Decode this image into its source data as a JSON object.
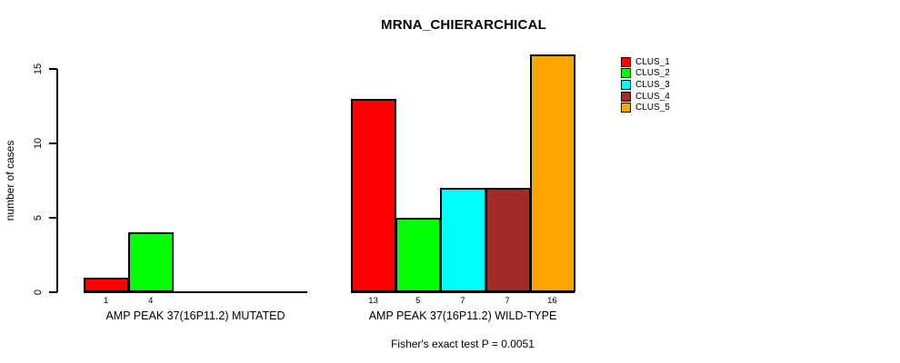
{
  "title": "MRNA_CHIERARCHICAL",
  "footer": "Fisher's exact test P = 0.0051",
  "chart_data": {
    "type": "bar",
    "title": "MRNA_CHIERARCHICAL",
    "xlabel": "",
    "ylabel": "number of cases",
    "ylim": [
      0,
      15
    ],
    "yticks": [
      0,
      5,
      10,
      15
    ],
    "grid": false,
    "legend_position": "top-right",
    "legend": [
      {
        "label": "CLUS_1",
        "color": "#ff0000"
      },
      {
        "label": "CLUS_2",
        "color": "#00ff00"
      },
      {
        "label": "CLUS_3",
        "color": "#00ffff"
      },
      {
        "label": "CLUS_4",
        "color": "#a52a2a"
      },
      {
        "label": "CLUS_5",
        "color": "#ffa500"
      }
    ],
    "groups": [
      {
        "axis_label": "AMP PEAK 37(16P11.2) MUTATED",
        "bars": [
          {
            "cluster": "CLUS_1",
            "value": 1
          },
          {
            "cluster": "CLUS_2",
            "value": 4
          }
        ]
      },
      {
        "axis_label": "AMP PEAK 37(16P11.2) WILD-TYPE",
        "bars": [
          {
            "cluster": "CLUS_1",
            "value": 13
          },
          {
            "cluster": "CLUS_2",
            "value": 5
          },
          {
            "cluster": "CLUS_3",
            "value": 7
          },
          {
            "cluster": "CLUS_4",
            "value": 7
          },
          {
            "cluster": "CLUS_5",
            "value": 16
          }
        ]
      }
    ],
    "annotation": "Fisher's exact test P = 0.0051"
  }
}
